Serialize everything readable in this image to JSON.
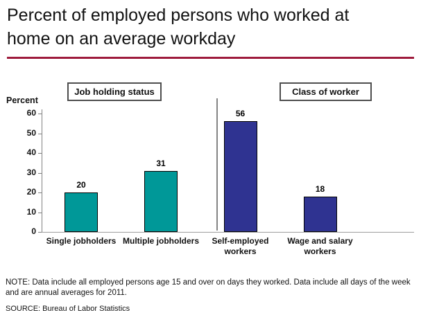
{
  "title": "Percent of employed persons who worked at home on an average workday",
  "accent_rule_color": "#9E1B3C",
  "chart_data": {
    "type": "bar",
    "title": "Percent of employed persons who worked at home on an average workday",
    "ylabel": "Percent",
    "xlabel": "",
    "ylim": [
      0,
      60
    ],
    "yticks": [
      0,
      10,
      20,
      30,
      40,
      50,
      60
    ],
    "grid": false,
    "legend": "none",
    "groups": [
      {
        "label": "Job holding status",
        "bar_color": "#009898",
        "bars": [
          {
            "category": "Single jobholders",
            "value": 20
          },
          {
            "category": "Multiple jobholders",
            "value": 31
          }
        ]
      },
      {
        "label": "Class of worker",
        "bar_color": "#2F3391",
        "bars": [
          {
            "category": "Self-employed workers",
            "value": 56
          },
          {
            "category": "Wage and salary workers",
            "value": 18
          }
        ]
      }
    ]
  },
  "note": "NOTE: Data include all employed persons age 15 and over on days they worked. Data include all days of the week and are annual averages for 2011.",
  "source": "SOURCE: Bureau of Labor Statistics"
}
